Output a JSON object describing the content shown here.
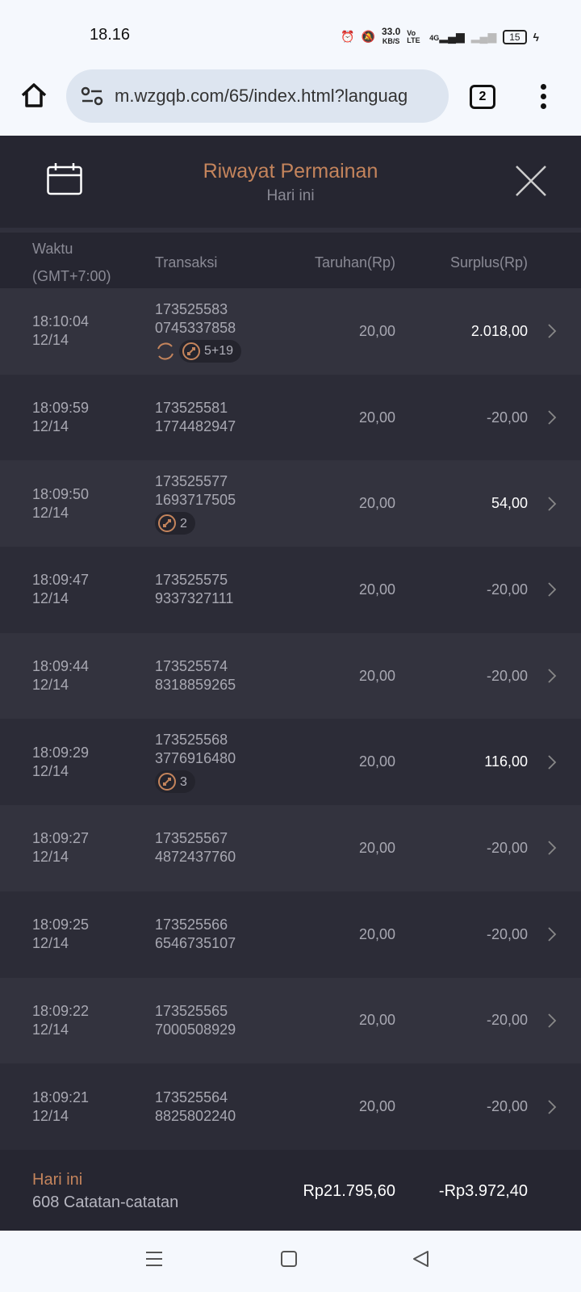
{
  "status": {
    "time": "18.16",
    "speed": "33.0",
    "speed_unit": "KB/S",
    "volte": "Vo LTE",
    "network": "4G",
    "battery": "15"
  },
  "browser": {
    "url": "m.wzgqb.com/65/index.html?languag",
    "tab_count": "2"
  },
  "header": {
    "title": "Riwayat Permainan",
    "subtitle": "Hari ini"
  },
  "columns": {
    "time": "Waktu",
    "timezone": "(GMT+7:00)",
    "transaction": "Transaksi",
    "bet": "Taruhan(Rp)",
    "surplus": "Surplus(Rp)"
  },
  "accent_color": "#c4845c",
  "rows": [
    {
      "time": "18:10:04",
      "date": "12/14",
      "id1": "173525583",
      "id2": "0745337858",
      "bet": "20,00",
      "surplus": "2.018,00",
      "win": true,
      "respin": true,
      "badge": "5+19"
    },
    {
      "time": "18:09:59",
      "date": "12/14",
      "id1": "173525581",
      "id2": "1774482947",
      "bet": "20,00",
      "surplus": "-20,00"
    },
    {
      "time": "18:09:50",
      "date": "12/14",
      "id1": "173525577",
      "id2": "1693717505",
      "bet": "20,00",
      "surplus": "54,00",
      "win": true,
      "badge": "2"
    },
    {
      "time": "18:09:47",
      "date": "12/14",
      "id1": "173525575",
      "id2": "9337327111",
      "bet": "20,00",
      "surplus": "-20,00"
    },
    {
      "time": "18:09:44",
      "date": "12/14",
      "id1": "173525574",
      "id2": "8318859265",
      "bet": "20,00",
      "surplus": "-20,00"
    },
    {
      "time": "18:09:29",
      "date": "12/14",
      "id1": "173525568",
      "id2": "3776916480",
      "bet": "20,00",
      "surplus": "116,00",
      "win": true,
      "badge": "3"
    },
    {
      "time": "18:09:27",
      "date": "12/14",
      "id1": "173525567",
      "id2": "4872437760",
      "bet": "20,00",
      "surplus": "-20,00"
    },
    {
      "time": "18:09:25",
      "date": "12/14",
      "id1": "173525566",
      "id2": "6546735107",
      "bet": "20,00",
      "surplus": "-20,00"
    },
    {
      "time": "18:09:22",
      "date": "12/14",
      "id1": "173525565",
      "id2": "7000508929",
      "bet": "20,00",
      "surplus": "-20,00"
    },
    {
      "time": "18:09:21",
      "date": "12/14",
      "id1": "173525564",
      "id2": "8825802240",
      "bet": "20,00",
      "surplus": "-20,00"
    }
  ],
  "footer": {
    "period": "Hari ini",
    "records": "608 Catatan-catatan",
    "total_bet": "Rp21.795,60",
    "total_surplus": "-Rp3.972,40"
  }
}
